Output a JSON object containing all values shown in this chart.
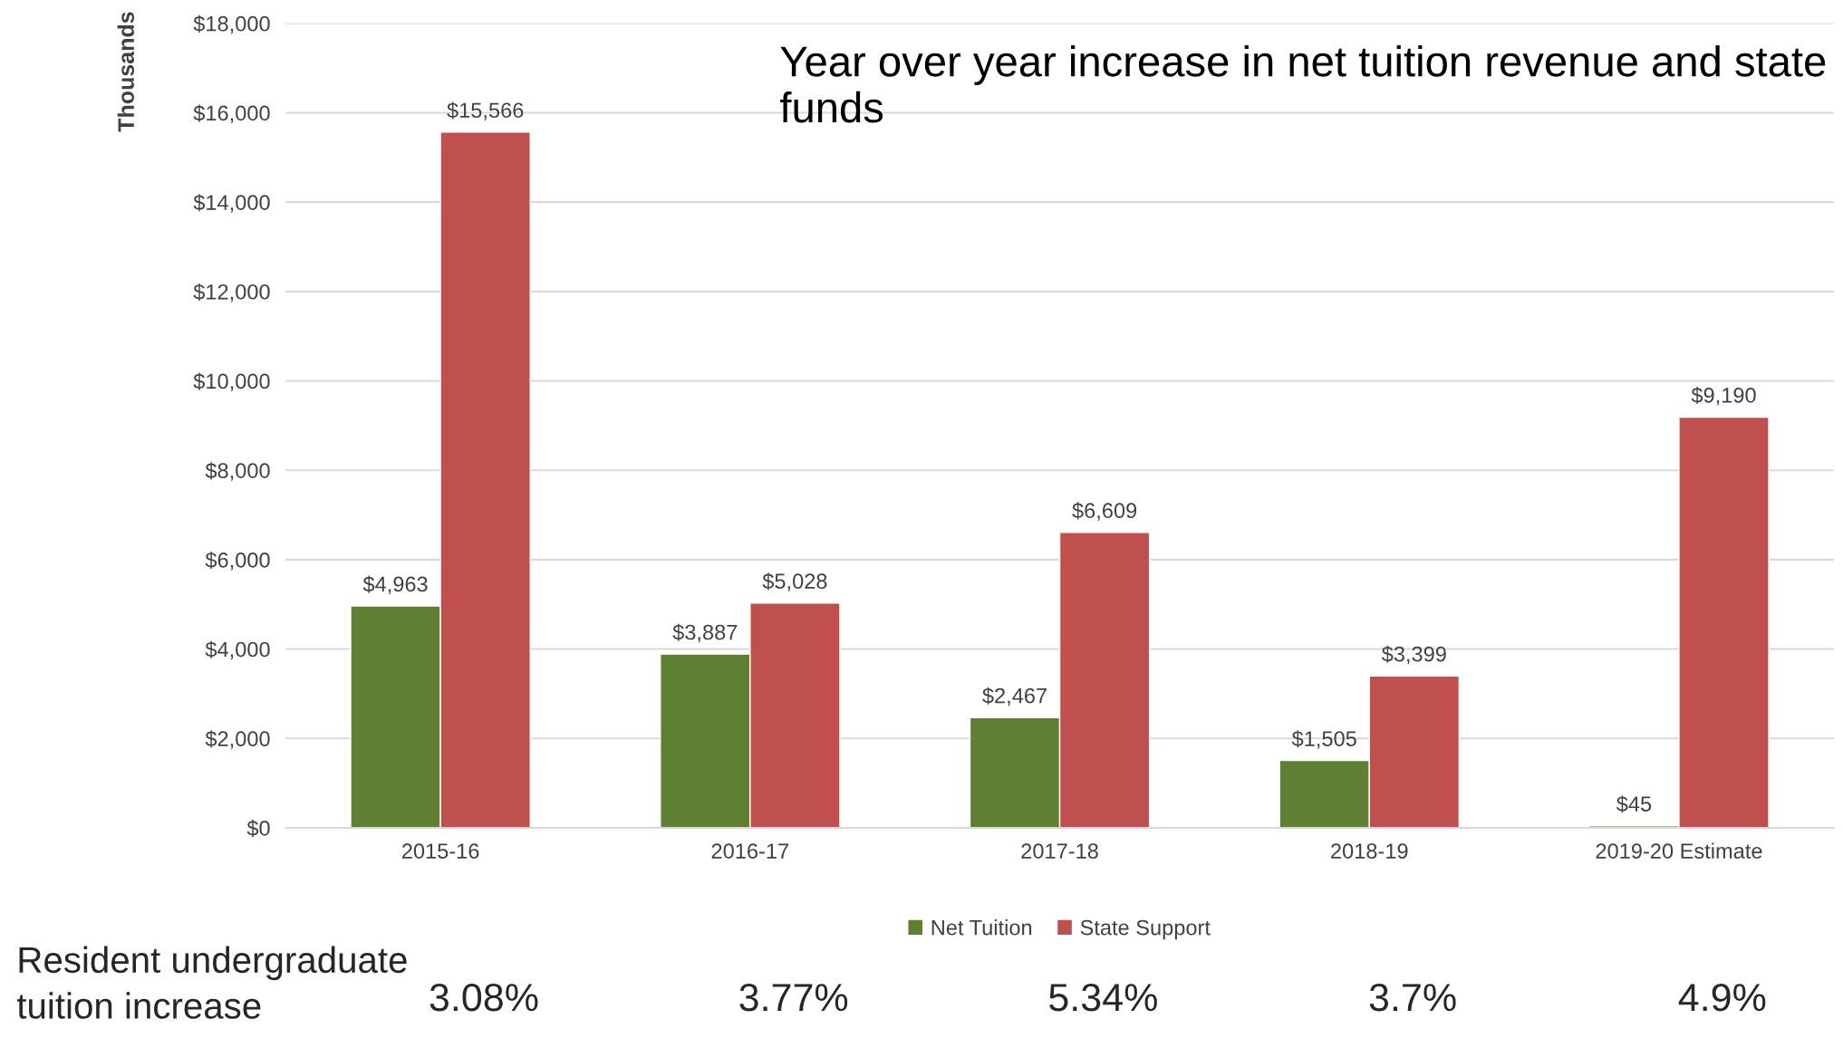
{
  "chart_data": {
    "type": "bar",
    "title": "Year over year increase in net tuition revenue and state funds",
    "ylabel": "Thousands",
    "categories": [
      "2015-16",
      "2016-17",
      "2017-18",
      "2018-19",
      "2019-20 Estimate"
    ],
    "series": [
      {
        "name": "Net Tuition",
        "color": "#5f8032",
        "values": [
          4963,
          3887,
          2467,
          1505,
          45
        ],
        "value_labels": [
          "$4,963",
          "$3,887",
          "$2,467",
          "$1,505",
          "$45"
        ]
      },
      {
        "name": "State Support",
        "color": "#c0504d",
        "values": [
          15566,
          5028,
          6609,
          3399,
          9190
        ],
        "value_labels": [
          "$15,566",
          "$5,028",
          "$6,609",
          "$3,399",
          "$9,190"
        ]
      }
    ],
    "ylim": [
      0,
      18000
    ],
    "yticks": [
      {
        "value": 0,
        "label": "$0"
      },
      {
        "value": 2000,
        "label": "$2,000"
      },
      {
        "value": 4000,
        "label": "$4,000"
      },
      {
        "value": 6000,
        "label": "$6,000"
      },
      {
        "value": 8000,
        "label": "$8,000"
      },
      {
        "value": 10000,
        "label": "$10,000"
      },
      {
        "value": 12000,
        "label": "$12,000"
      },
      {
        "value": 14000,
        "label": "$14,000"
      },
      {
        "value": 16000,
        "label": "$16,000"
      },
      {
        "value": 18000,
        "label": "$18,000"
      }
    ],
    "grid": "y",
    "legend": "bottom",
    "annotations": [
      "Resident undergraduate\ntuition increase",
      "3.08%",
      "3.77%",
      "5.34%",
      "3.7%",
      "4.9%"
    ]
  }
}
